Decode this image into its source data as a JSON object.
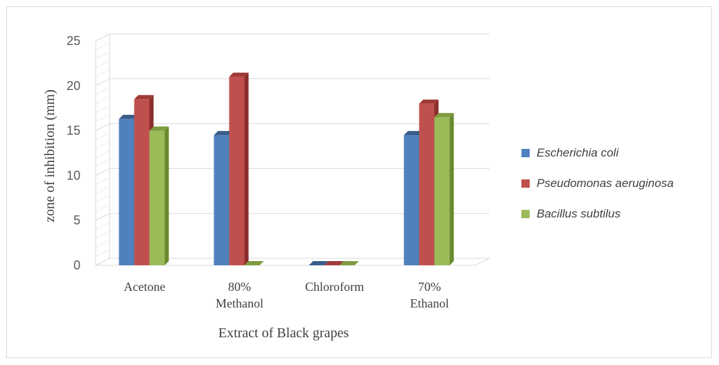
{
  "chart_data": {
    "type": "bar",
    "categories": [
      [
        "Acetone"
      ],
      [
        "80%",
        "Methanol"
      ],
      [
        "Chloroform"
      ],
      [
        "70%",
        "Ethanol"
      ]
    ],
    "series": [
      {
        "name": "Escherichia coli",
        "values": [
          16.3,
          14.5,
          0,
          14.5
        ],
        "color": "#4f81bd",
        "side_color": "#2e5b93",
        "top_color": "#385d8a"
      },
      {
        "name": "Pseudomonas aeruginosa",
        "values": [
          18.5,
          21,
          0,
          18
        ],
        "color": "#c0504d",
        "side_color": "#8b2d2b",
        "top_color": "#a03a37"
      },
      {
        "name": "Bacillus subtilus",
        "values": [
          15,
          0,
          0,
          16.5
        ],
        "color": "#9bbb59",
        "side_color": "#6a8a2e",
        "top_color": "#7e9c3f"
      }
    ],
    "yticks": [
      0,
      5,
      10,
      15,
      20,
      25
    ],
    "ylim": [
      0,
      25
    ],
    "xlabel": "Extract of Black grapes",
    "ylabel": "zone of inhibition (mm)",
    "legend_position": "right",
    "grid": true
  }
}
